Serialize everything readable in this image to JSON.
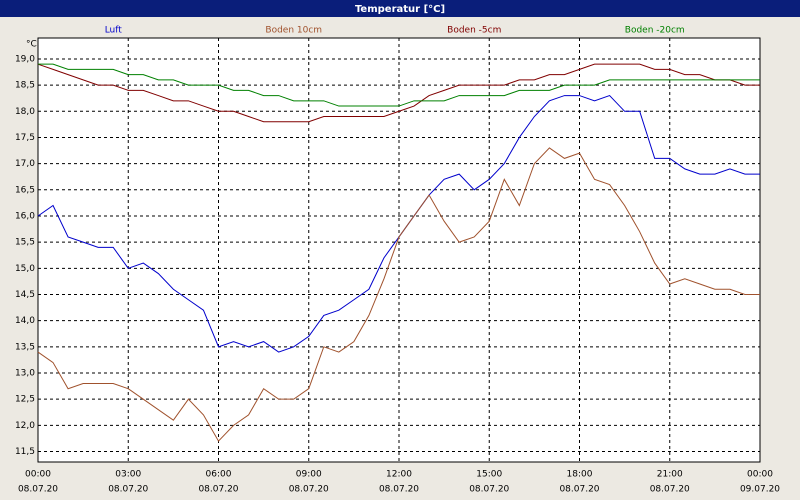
{
  "chart_data": {
    "type": "line",
    "title": "Temperatur [°C]",
    "y_unit": "°C",
    "x": [
      0,
      0.5,
      1,
      1.5,
      2,
      2.5,
      3,
      3.5,
      4,
      4.5,
      5,
      5.5,
      6,
      6.5,
      7,
      7.5,
      8,
      8.5,
      9,
      9.5,
      10,
      10.5,
      11,
      11.5,
      12,
      12.5,
      13,
      13.5,
      14,
      14.5,
      15,
      15.5,
      16,
      16.5,
      17,
      17.5,
      18,
      18.5,
      19,
      19.5,
      20,
      20.5,
      21,
      21.5,
      22,
      22.5,
      23,
      23.5,
      24
    ],
    "series": [
      {
        "name": "Luft",
        "color": "#0000cc",
        "values": [
          16.0,
          16.2,
          15.6,
          15.5,
          15.4,
          15.4,
          15.0,
          15.1,
          14.9,
          14.6,
          14.4,
          14.2,
          13.5,
          13.6,
          13.5,
          13.6,
          13.4,
          13.5,
          13.7,
          14.1,
          14.2,
          14.4,
          14.6,
          15.2,
          15.6,
          16.0,
          16.4,
          16.7,
          16.8,
          16.5,
          16.7,
          17.0,
          17.5,
          17.9,
          18.2,
          18.3,
          18.3,
          18.2,
          18.3,
          18.0,
          18.0,
          17.1,
          17.1,
          16.9,
          16.8,
          16.8,
          16.9,
          16.8,
          16.8
        ]
      },
      {
        "name": "Boden 10cm",
        "color": "#a0522d",
        "values": [
          13.4,
          13.2,
          12.7,
          12.8,
          12.8,
          12.8,
          12.7,
          12.5,
          12.3,
          12.1,
          12.5,
          12.2,
          11.7,
          12.0,
          12.2,
          12.7,
          12.5,
          12.5,
          12.7,
          13.5,
          13.4,
          13.6,
          14.1,
          14.8,
          15.6,
          16.0,
          16.4,
          15.9,
          15.5,
          15.6,
          15.9,
          16.7,
          16.2,
          17.0,
          17.3,
          17.1,
          17.2,
          16.7,
          16.6,
          16.2,
          15.7,
          15.1,
          14.7,
          14.8,
          14.7,
          14.6,
          14.6,
          14.5,
          14.5
        ]
      },
      {
        "name": "Boden -5cm",
        "color": "#800000",
        "values": [
          18.9,
          18.8,
          18.7,
          18.6,
          18.5,
          18.5,
          18.4,
          18.4,
          18.3,
          18.2,
          18.2,
          18.1,
          18.0,
          18.0,
          17.9,
          17.8,
          17.8,
          17.8,
          17.8,
          17.9,
          17.9,
          17.9,
          17.9,
          17.9,
          18.0,
          18.1,
          18.3,
          18.4,
          18.5,
          18.5,
          18.5,
          18.5,
          18.6,
          18.6,
          18.7,
          18.7,
          18.8,
          18.9,
          18.9,
          18.9,
          18.9,
          18.8,
          18.8,
          18.7,
          18.7,
          18.6,
          18.6,
          18.5,
          18.5
        ]
      },
      {
        "name": "Boden -20cm",
        "color": "#008000",
        "values": [
          18.9,
          18.9,
          18.8,
          18.8,
          18.8,
          18.8,
          18.7,
          18.7,
          18.6,
          18.6,
          18.5,
          18.5,
          18.5,
          18.4,
          18.4,
          18.3,
          18.3,
          18.2,
          18.2,
          18.2,
          18.1,
          18.1,
          18.1,
          18.1,
          18.1,
          18.2,
          18.2,
          18.2,
          18.3,
          18.3,
          18.3,
          18.3,
          18.4,
          18.4,
          18.4,
          18.5,
          18.5,
          18.5,
          18.6,
          18.6,
          18.6,
          18.6,
          18.6,
          18.6,
          18.6,
          18.6,
          18.6,
          18.6,
          18.6
        ]
      }
    ],
    "xlim": [
      0,
      24
    ],
    "xticks": [
      {
        "value": 0,
        "label": "00:00"
      },
      {
        "value": 3,
        "label": "03:00"
      },
      {
        "value": 6,
        "label": "06:00"
      },
      {
        "value": 9,
        "label": "09:00"
      },
      {
        "value": 12,
        "label": "12:00"
      },
      {
        "value": 15,
        "label": "15:00"
      },
      {
        "value": 18,
        "label": "18:00"
      },
      {
        "value": 21,
        "label": "21:00"
      },
      {
        "value": 24,
        "label": "00:00"
      }
    ],
    "xtick_dates": [
      "08.07.20",
      "08.07.20",
      "08.07.20",
      "08.07.20",
      "08.07.20",
      "08.07.20",
      "08.07.20",
      "08.07.20",
      "09.07.20"
    ],
    "ylim": [
      11.3,
      19.4
    ],
    "yticks": [
      {
        "value": 11.5,
        "label": "11,5"
      },
      {
        "value": 12,
        "label": "12,0"
      },
      {
        "value": 12.5,
        "label": "12,5"
      },
      {
        "value": 13,
        "label": "13,0"
      },
      {
        "value": 13.5,
        "label": "13,5"
      },
      {
        "value": 14,
        "label": "14,0"
      },
      {
        "value": 14.5,
        "label": "14,5"
      },
      {
        "value": 15,
        "label": "15,0"
      },
      {
        "value": 15.5,
        "label": "15,5"
      },
      {
        "value": 16,
        "label": "16,0"
      },
      {
        "value": 16.5,
        "label": "16,5"
      },
      {
        "value": 17,
        "label": "17,0"
      },
      {
        "value": 17.5,
        "label": "17,5"
      },
      {
        "value": 18,
        "label": "18,0"
      },
      {
        "value": 18.5,
        "label": "18,5"
      },
      {
        "value": 19,
        "label": "19,0"
      }
    ],
    "grid": true
  }
}
